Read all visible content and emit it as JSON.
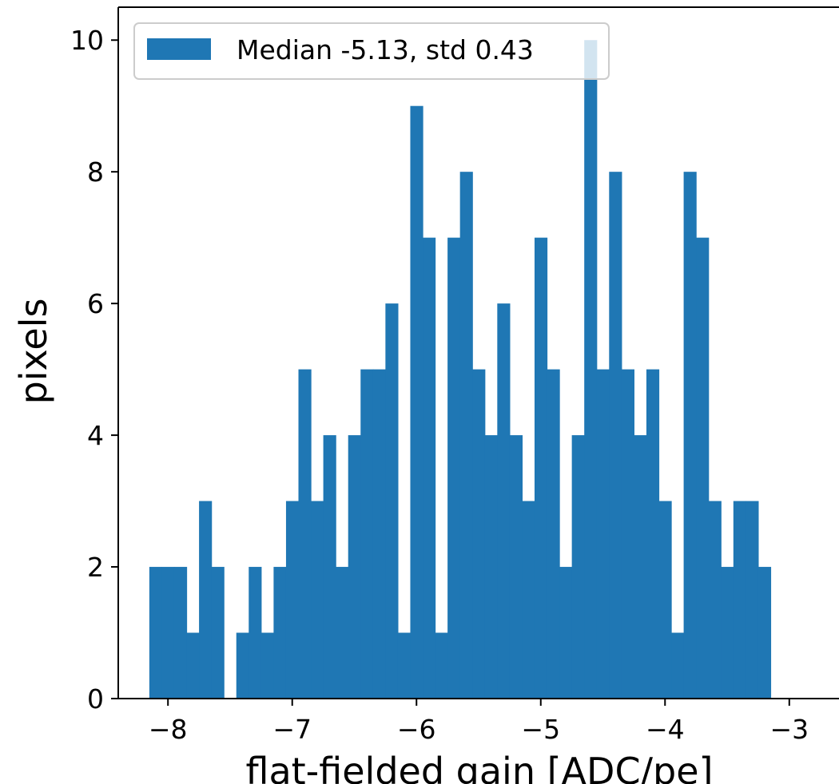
{
  "colors": {
    "bar": "#1f77b4",
    "axis": "#000000",
    "legend_border": "#cccccc"
  },
  "chart_data": {
    "type": "bar",
    "histogram": true,
    "title": "",
    "xlabel": "flat-fielded gain [ADC/pe]",
    "ylabel": "pixels",
    "xlim": [
      -8.4,
      -2.6
    ],
    "ylim": [
      0,
      10.5
    ],
    "xticks": [
      -8,
      -7,
      -6,
      -5,
      -4,
      -3
    ],
    "xtick_labels": [
      "−8",
      "−7",
      "−6",
      "−5",
      "−4",
      "−3"
    ],
    "yticks": [
      0,
      2,
      4,
      6,
      8,
      10
    ],
    "ytick_labels": [
      "0",
      "2",
      "4",
      "6",
      "8",
      "10"
    ],
    "bin_start": -8.15,
    "bin_width": 0.1,
    "values": [
      2,
      2,
      2,
      1,
      3,
      2,
      0,
      1,
      2,
      1,
      2,
      3,
      5,
      3,
      4,
      2,
      4,
      5,
      5,
      6,
      1,
      9,
      7,
      1,
      7,
      8,
      5,
      4,
      6,
      4,
      3,
      7,
      5,
      2,
      4,
      10,
      5,
      8,
      5,
      4,
      5,
      3,
      1,
      8,
      7,
      3,
      2,
      3,
      3,
      2
    ],
    "grid": false,
    "legend": {
      "placement": "upper-left",
      "entries": [
        "Median -5.13, std 0.43"
      ]
    }
  }
}
